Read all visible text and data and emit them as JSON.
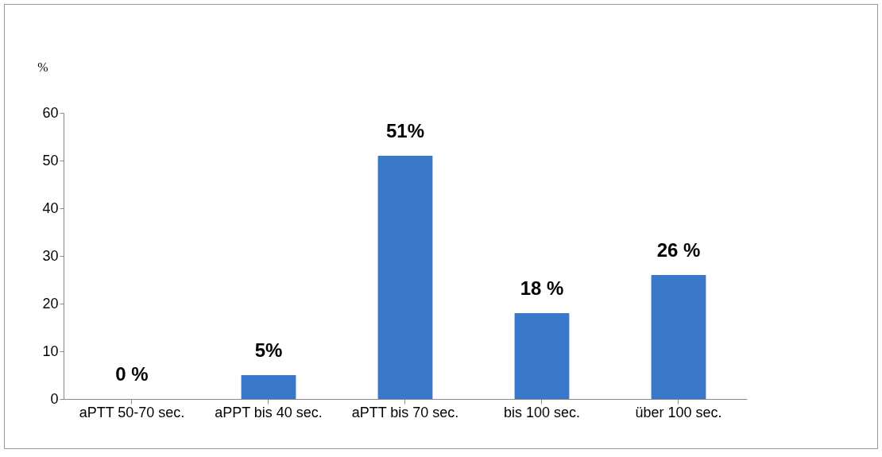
{
  "chart_data": {
    "type": "bar",
    "ylabel": "%",
    "categories": [
      "aPTT 50-70 sec.",
      "aPPT bis 40 sec.",
      "aPTT bis 70 sec.",
      "bis 100 sec.",
      "über 100 sec."
    ],
    "values": [
      0,
      5,
      51,
      18,
      26
    ],
    "value_labels": [
      "0 %",
      "5%",
      "51%",
      "18 %",
      "26 %"
    ],
    "color": "#3a78c9",
    "ylim": [
      0,
      60
    ],
    "yticks": [
      0,
      10,
      20,
      30,
      40,
      50,
      60
    ],
    "grid": false
  }
}
